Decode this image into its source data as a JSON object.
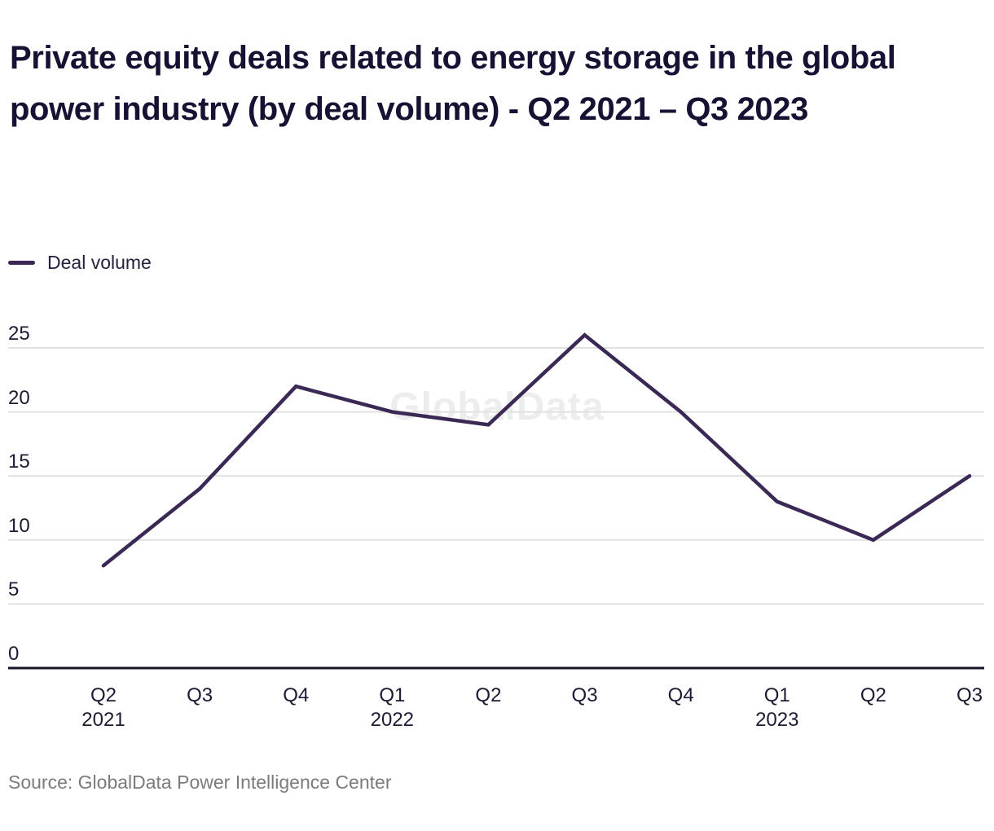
{
  "title": "Private equity deals related to energy storage in the global power industry (by deal volume) - Q2 2021 – Q3 2023",
  "legend": {
    "label": "Deal volume"
  },
  "watermark": "GlobalData",
  "source": "Source: GlobalData Power Intelligence Center",
  "colors": {
    "line": "#3b2955",
    "grid": "#e1e1e1",
    "axis": "#161626",
    "title_text": "#171233",
    "tick_text": "#1b1b33",
    "source_text": "#7b7b7b",
    "watermark_text": "#ededed"
  },
  "chart_data": {
    "type": "line",
    "title": "Private equity deals related to energy storage in the global power industry (by deal volume) - Q2 2021 – Q3 2023",
    "categories": [
      "Q2 2021",
      "Q3 2021",
      "Q4 2021",
      "Q1 2022",
      "Q2 2022",
      "Q3 2022",
      "Q4 2022",
      "Q1 2023",
      "Q2 2023",
      "Q3 2023"
    ],
    "series": [
      {
        "name": "Deal volume",
        "values": [
          8,
          14,
          22,
          20,
          19,
          26,
          20,
          13,
          10,
          15
        ]
      }
    ],
    "yticks": [
      0,
      5,
      10,
      15,
      20,
      25
    ],
    "ylim": [
      0,
      26.5
    ],
    "xlabel": "",
    "ylabel": "",
    "grid": "horizontal",
    "legend_position": "top-left"
  }
}
